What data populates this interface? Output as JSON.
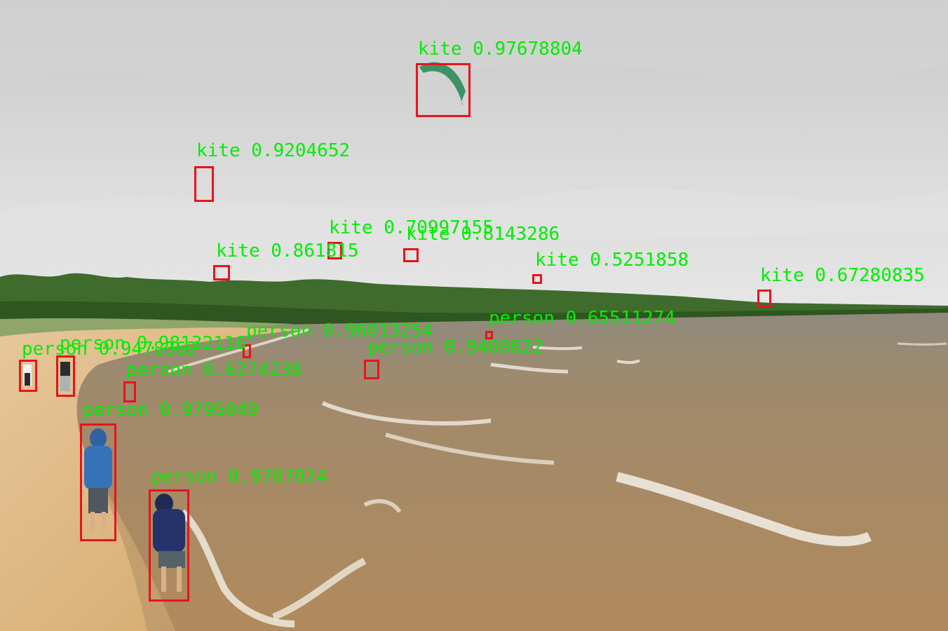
{
  "image": {
    "scene": "cloudy lakeshore beach with kiteboarders and people walking along the waterline",
    "colors": {
      "box": "#e8141c",
      "label": "#00ee00"
    }
  },
  "detections": [
    {
      "label": "kite 0.97678804"
    },
    {
      "label": "kite 0.9204652"
    },
    {
      "label": "kite 0.70997155"
    },
    {
      "label": "kite 0.8143286"
    },
    {
      "label": "kite 0.861815"
    },
    {
      "label": "kite 0.5251858"
    },
    {
      "label": "kite 0.67280835"
    },
    {
      "label": "person 0.65511274"
    },
    {
      "label": "person 0.96013254"
    },
    {
      "label": "person 0.9400622"
    },
    {
      "label": "person 0.98132116"
    },
    {
      "label": "person 0.9478362"
    },
    {
      "label": "person 0.6274238"
    },
    {
      "label": "person 0.9795049"
    },
    {
      "label": "person 0.9707024"
    }
  ]
}
